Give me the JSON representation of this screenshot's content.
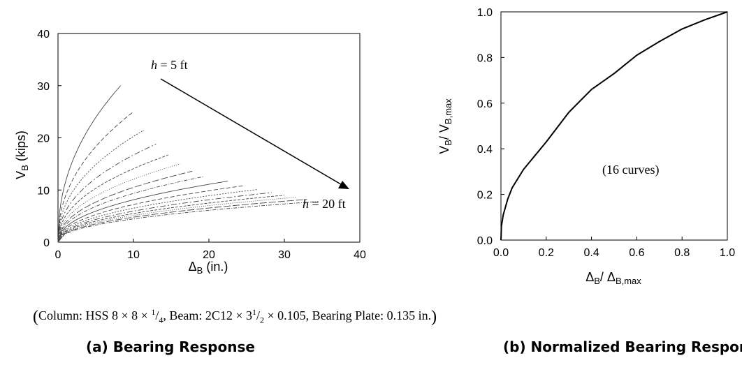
{
  "chart_data": [
    {
      "panel": "(a) Bearing Response",
      "type": "line",
      "xlabel": "ΔB (in.)",
      "ylabel": "VB (kips)",
      "xlim": [
        0,
        40
      ],
      "ylim": [
        0,
        40
      ],
      "xticks": [
        "0",
        "10",
        "20",
        "30",
        "40"
      ],
      "yticks": [
        "0",
        "10",
        "20",
        "30",
        "40"
      ],
      "annotations": [
        "h = 5 ft",
        "h = 20 ft"
      ],
      "series": [
        {
          "x_end": 8.3,
          "y_end": 30.0
        },
        {
          "x_end": 10.0,
          "y_end": 25.0
        },
        {
          "x_end": 11.4,
          "y_end": 21.5
        },
        {
          "x_end": 13.0,
          "y_end": 18.8
        },
        {
          "x_end": 14.6,
          "y_end": 16.7
        },
        {
          "x_end": 16.2,
          "y_end": 15.0
        },
        {
          "x_end": 17.8,
          "y_end": 13.6
        },
        {
          "x_end": 19.4,
          "y_end": 12.6
        },
        {
          "x_end": 22.5,
          "y_end": 11.7
        },
        {
          "x_end": 24.5,
          "y_end": 10.8
        },
        {
          "x_end": 26.5,
          "y_end": 10.1
        },
        {
          "x_end": 28.3,
          "y_end": 9.5
        },
        {
          "x_end": 30.0,
          "y_end": 9.0
        },
        {
          "x_end": 31.5,
          "y_end": 8.6
        },
        {
          "x_end": 33.0,
          "y_end": 8.2
        },
        {
          "x_end": 34.5,
          "y_end": 7.8
        }
      ]
    },
    {
      "panel": "(b) Normalized Bearing Response",
      "type": "line",
      "xlabel": "ΔB/ ΔB,max",
      "ylabel": "VB/ VB,max",
      "xlim": [
        0,
        1
      ],
      "ylim": [
        0,
        1
      ],
      "xticks": [
        "0.0",
        "0.2",
        "0.4",
        "0.6",
        "0.8",
        "1.0"
      ],
      "yticks": [
        "0.0",
        "0.2",
        "0.4",
        "0.6",
        "0.8",
        "1.0"
      ],
      "annotation": "(16 curves)",
      "series": [
        {
          "x": [
            0,
            0.002,
            0.01,
            0.03,
            0.05,
            0.1,
            0.2,
            0.3,
            0.4,
            0.5,
            0.6,
            0.7,
            0.8,
            0.9,
            1.0
          ],
          "y": [
            0,
            0.06,
            0.11,
            0.18,
            0.23,
            0.31,
            0.43,
            0.56,
            0.66,
            0.73,
            0.81,
            0.87,
            0.925,
            0.965,
            1.0
          ]
        }
      ]
    }
  ],
  "caption": {
    "text": "Column: HSS 8 × 8 × 1/4, Beam: 2C12 × 3 1/2 × 0.105, Bearing Plate: 0.135 in."
  },
  "subtitles": [
    "(a) Bearing Response",
    "(b) Normalized Bearing Response"
  ]
}
